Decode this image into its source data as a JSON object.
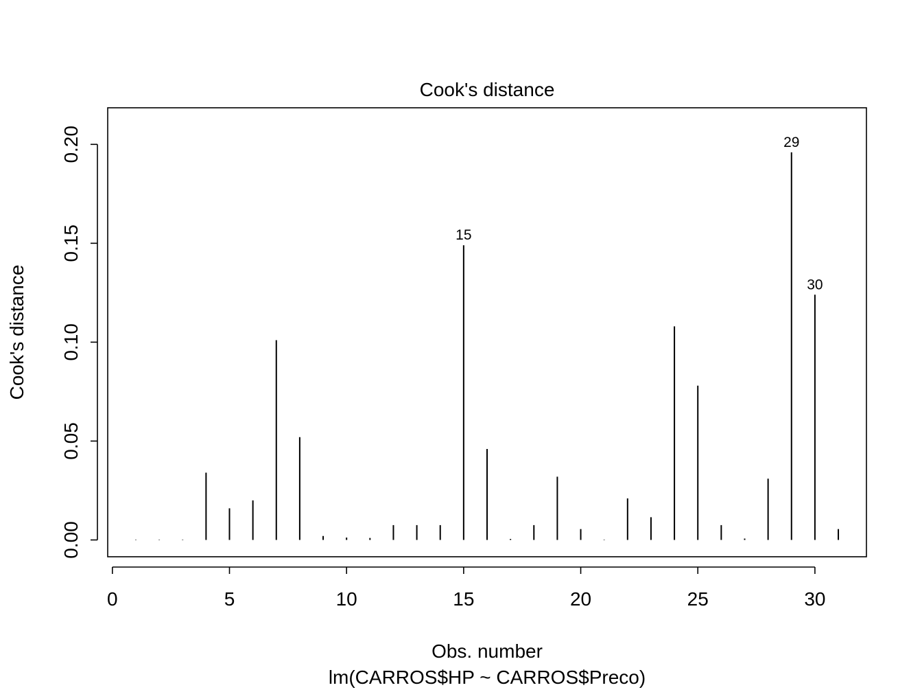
{
  "chart_data": {
    "type": "bar",
    "title": "Cook's distance",
    "xlabel": "Obs. number",
    "subtitle": "lm(CARROS$HP ~ CARROS$Preco)",
    "ylabel": "Cook's distance",
    "x": [
      1,
      2,
      3,
      4,
      5,
      6,
      7,
      8,
      9,
      10,
      11,
      12,
      13,
      14,
      15,
      16,
      17,
      18,
      19,
      20,
      21,
      22,
      23,
      24,
      25,
      26,
      27,
      28,
      29,
      30,
      31
    ],
    "values": [
      0.0002,
      0.0002,
      0.0002,
      0.034,
      0.016,
      0.02,
      0.101,
      0.052,
      0.002,
      0.0012,
      0.001,
      0.0075,
      0.0075,
      0.0075,
      0.149,
      0.046,
      0.0005,
      0.0075,
      0.032,
      0.0055,
      0.0002,
      0.021,
      0.0115,
      0.108,
      0.078,
      0.0075,
      0.0007,
      0.031,
      0.196,
      0.124,
      0.0055
    ],
    "xlim": [
      -0.2,
      32.2
    ],
    "ylim": [
      -0.0085,
      0.2185
    ],
    "xticks": [
      0,
      5,
      10,
      15,
      20,
      25,
      30
    ],
    "xtick_labels": [
      "0",
      "5",
      "10",
      "15",
      "20",
      "25",
      "30"
    ],
    "yticks": [
      0.0,
      0.05,
      0.1,
      0.15,
      0.2
    ],
    "ytick_labels": [
      "0.00",
      "0.05",
      "0.10",
      "0.15",
      "0.20"
    ],
    "annotations": [
      {
        "x": 15,
        "label": "15"
      },
      {
        "x": 29,
        "label": "29"
      },
      {
        "x": 30,
        "label": "30"
      }
    ],
    "grid": false,
    "colors": {
      "line": "#000000",
      "background": "#ffffff"
    }
  }
}
